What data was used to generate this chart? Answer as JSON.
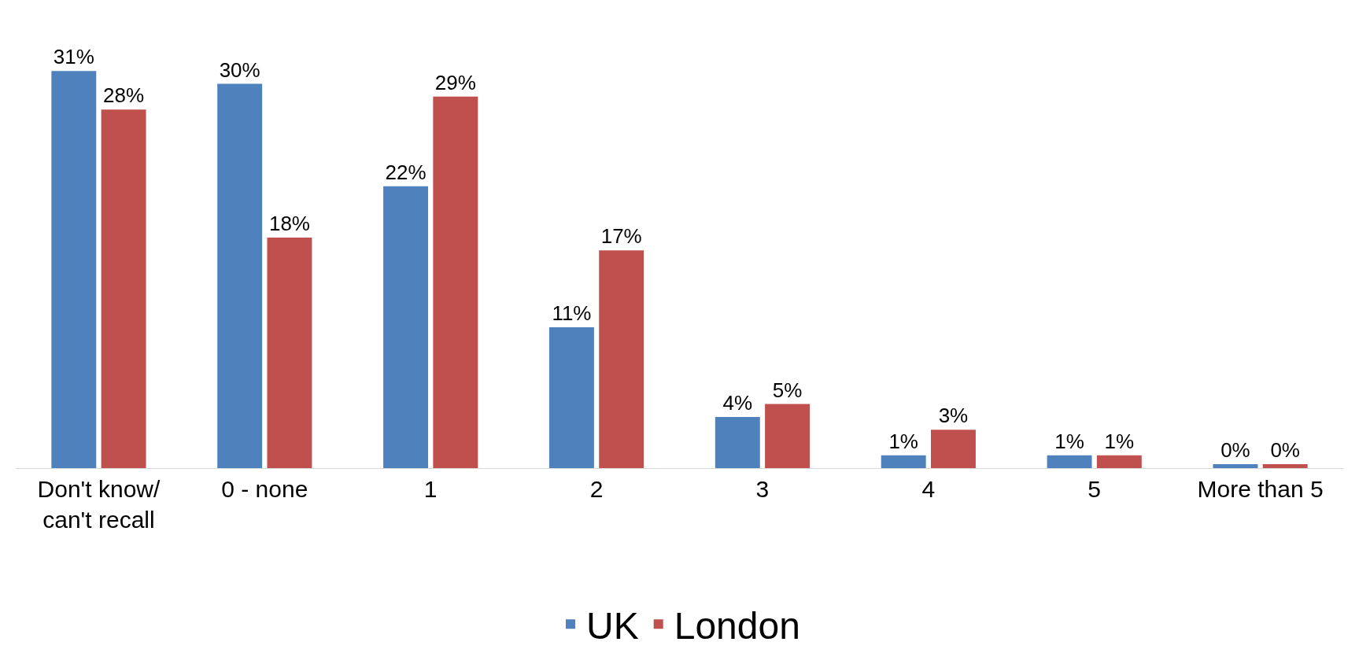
{
  "chart_data": {
    "type": "bar",
    "categories": [
      "Don't know/ can't recall",
      "0 - none",
      "1",
      "2",
      "3",
      "4",
      "5",
      "More than 5"
    ],
    "series": [
      {
        "name": "UK",
        "color": "#4f81bd",
        "values": [
          31,
          30,
          22,
          11,
          4,
          1,
          1,
          0.3
        ],
        "value_labels": [
          "31%",
          "30%",
          "22%",
          "11%",
          "4%",
          "1%",
          "1%",
          "0%"
        ]
      },
      {
        "name": "London",
        "color": "#c0504d",
        "values": [
          28,
          18,
          29,
          17,
          5,
          3,
          1,
          0.3
        ],
        "value_labels": [
          "28%",
          "18%",
          "29%",
          "17%",
          "5%",
          "3%",
          "1%",
          "0%"
        ]
      }
    ],
    "legend": "bottom"
  }
}
